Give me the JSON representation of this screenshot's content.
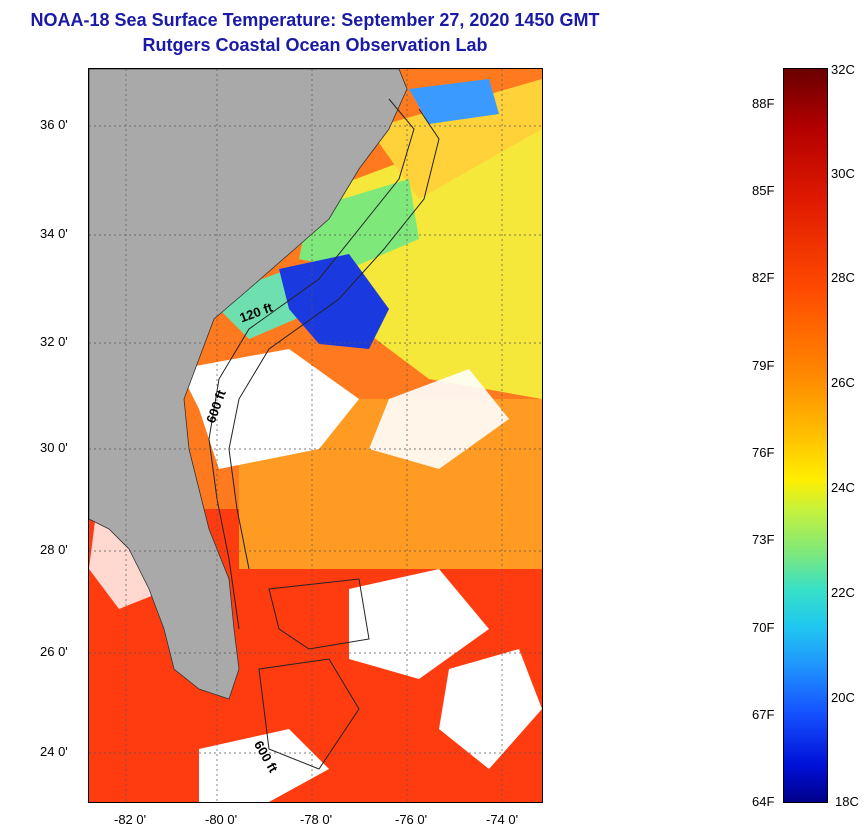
{
  "title_line1": "NOAA-18 Sea Surface Temperature:  September 27, 2020 1450 GMT",
  "title_line2": "Rutgers Coastal Ocean Observation Lab",
  "map": {
    "lat_labels": [
      "36 0'",
      "34 0'",
      "32 0'",
      "30 0'",
      "28 0'",
      "26 0'",
      "24 0'"
    ],
    "lon_labels": [
      "-82 0'",
      "-80 0'",
      "-78 0'",
      "-76 0'",
      "-74 0'"
    ],
    "contour_labels": [
      "120 ft",
      "600 ft",
      "600 ft"
    ],
    "colors": {
      "land": "#a9a9a9",
      "cloud": "#ffffff",
      "warm_water": "#ff5a1a",
      "mid_water": "#ffb020",
      "cool_water": "#ffee30",
      "cold_water": "#1a3adf"
    }
  },
  "colorbar": {
    "celsius_labels": [
      "32C",
      "30C",
      "28C",
      "26C",
      "24C",
      "22C",
      "20C",
      "18C"
    ],
    "fahrenheit_labels": [
      "88F",
      "85F",
      "82F",
      "79F",
      "76F",
      "73F",
      "70F",
      "67F",
      "64F"
    ]
  }
}
